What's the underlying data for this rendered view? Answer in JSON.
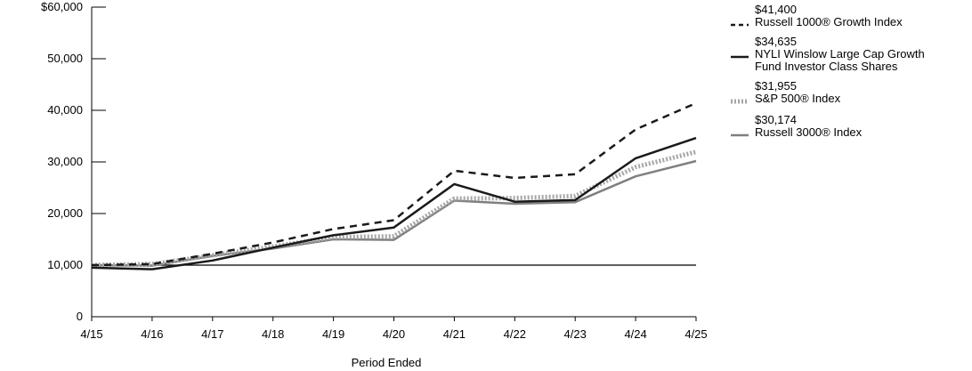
{
  "chart_data": {
    "type": "line",
    "title": "",
    "xlabel": "Period Ended",
    "ylabel": "",
    "categories": [
      "4/15",
      "4/16",
      "4/17",
      "4/18",
      "4/19",
      "4/20",
      "4/21",
      "4/22",
      "4/23",
      "4/24",
      "4/25"
    ],
    "y_ticks": [
      "$60,000",
      "50,000",
      "40,000",
      "30,000",
      "20,000",
      "10,000",
      "0"
    ],
    "ylim": [
      0,
      60000
    ],
    "reference_line": 10000,
    "grid": false,
    "legend_position": "right",
    "series": [
      {
        "name": "Russell 1000® Growth Index",
        "end_value_label": "$41,400",
        "color": "#1a1a1a",
        "style": "dashed",
        "values": [
          10000,
          10200,
          12200,
          14400,
          17000,
          18700,
          28300,
          26900,
          27600,
          36300,
          41400
        ]
      },
      {
        "name": "NYLI Winslow Large Cap Growth Fund Investor Class Shares",
        "end_value_label": "$34,635",
        "color": "#1a1a1a",
        "style": "solid",
        "values": [
          9500,
          9200,
          10900,
          13400,
          15800,
          17300,
          25700,
          22300,
          22600,
          30700,
          34635
        ]
      },
      {
        "name": "S&P 500® Index",
        "end_value_label": "$31,955",
        "color": "#a6a6a6",
        "style": "dotted",
        "values": [
          10000,
          10200,
          11900,
          13600,
          15400,
          15600,
          22900,
          23000,
          23400,
          29000,
          31955
        ]
      },
      {
        "name": "Russell 3000® Index",
        "end_value_label": "$30,174",
        "color": "#808080",
        "style": "solid",
        "values": [
          10000,
          9900,
          11800,
          13200,
          15000,
          14900,
          22500,
          21900,
          22200,
          27200,
          30174
        ]
      }
    ]
  },
  "legend": [
    {
      "value": "$41,400",
      "lines": [
        "Russell 1000® Growth Index"
      ]
    },
    {
      "value": "$34,635",
      "lines": [
        "NYLI Winslow Large Cap Growth",
        "Fund Investor Class Shares"
      ]
    },
    {
      "value": "$31,955",
      "lines": [
        "S&P 500® Index"
      ]
    },
    {
      "value": "$30,174",
      "lines": [
        "Russell 3000® Index"
      ]
    }
  ]
}
